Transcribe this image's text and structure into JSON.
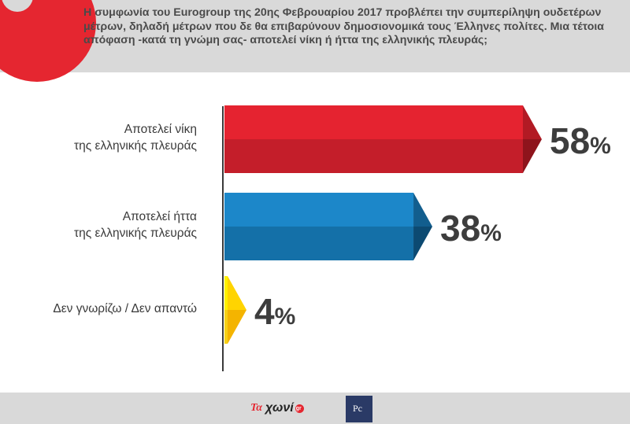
{
  "header": {
    "question": "Η συμφωνία του Eurogroup της 20ης Φεβρουαρίου 2017 προβλέπει την συμπερίληψη ουδετέρων μέτρων, δηλαδή μέτρων που δε θα επιβαρύνουν δημοσιονομικά τους Έλληνες πολίτες. Μια τέτοια απόφαση -κατά τη γνώμη σας- αποτελεί νίκη ή ήττα της ελληνικής πλευράς;"
  },
  "chart_data": {
    "type": "bar",
    "orientation": "horizontal",
    "categories": [
      [
        "Αποτελεί νίκη",
        "της ελληνικής πλευράς"
      ],
      [
        "Αποτελεί ήττα",
        "της ελληνικής πλευράς"
      ],
      [
        "Δεν γνωρίζω / Δεν απαντώ"
      ]
    ],
    "values": [
      58,
      38,
      4
    ],
    "value_labels": [
      "58",
      "38",
      "4"
    ],
    "unit": "%",
    "colors": [
      {
        "top": "#e52330",
        "bottom": "#c41e2a",
        "cap_top": "#b21a24",
        "cap_bottom": "#8e141c"
      },
      {
        "top": "#1c87c9",
        "bottom": "#1470a8",
        "cap_top": "#125e8e",
        "cap_bottom": "#0c4a72"
      },
      {
        "top": "#fff200",
        "bottom": "#f7d117",
        "cap_top": "#ffd400",
        "cap_bottom": "#f4b400"
      }
    ],
    "xlim": [
      0,
      58
    ]
  },
  "footer": {
    "brand_prefix": "Τα",
    "brand_word": "χωνί",
    "brand_suffix": "gr",
    "publisher_mark": "Ρc"
  }
}
